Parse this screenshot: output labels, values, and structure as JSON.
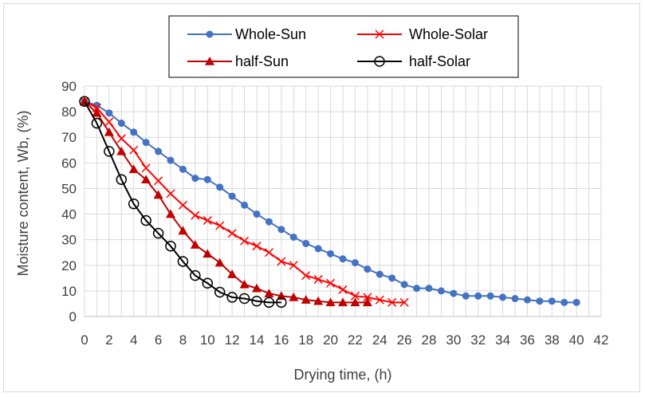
{
  "chart_data": {
    "type": "line",
    "title": "",
    "xlabel": "Drying time, (h)",
    "ylabel": "Moisture content, Wb, (%)",
    "xlim": [
      0,
      42
    ],
    "ylim": [
      0,
      90
    ],
    "xticks": [
      0,
      2,
      4,
      6,
      8,
      10,
      12,
      14,
      16,
      18,
      20,
      22,
      24,
      26,
      28,
      30,
      32,
      34,
      36,
      38,
      40,
      42
    ],
    "yticks": [
      0,
      10,
      20,
      30,
      40,
      50,
      60,
      70,
      80,
      90
    ],
    "grid": true,
    "legend_position": "top",
    "series": [
      {
        "name": "Whole-Sun",
        "color": "#4472c4",
        "marker": "circle-filled",
        "x": [
          0,
          1,
          2,
          3,
          4,
          5,
          6,
          7,
          8,
          9,
          10,
          11,
          12,
          13,
          14,
          15,
          16,
          17,
          18,
          19,
          20,
          21,
          22,
          23,
          24,
          25,
          26,
          27,
          28,
          29,
          30,
          31,
          32,
          33,
          34,
          35,
          36,
          37,
          38,
          39,
          40
        ],
        "y": [
          84,
          82.5,
          79.5,
          75.5,
          72,
          68,
          64.5,
          61,
          57.5,
          54,
          53.5,
          50.5,
          47,
          43.5,
          40,
          37,
          34,
          31,
          28.5,
          26.5,
          24.5,
          22.5,
          21,
          18.5,
          16.5,
          15,
          12.5,
          11,
          11,
          10,
          9,
          8,
          8,
          8,
          7.5,
          7,
          6.5,
          6,
          6,
          5.5,
          5.5
        ]
      },
      {
        "name": "Whole-Solar",
        "color": "#ff0000",
        "marker": "x",
        "x": [
          0,
          1,
          2,
          3,
          4,
          5,
          6,
          7,
          8,
          9,
          10,
          11,
          12,
          13,
          14,
          15,
          16,
          17,
          18,
          19,
          20,
          21,
          22,
          23,
          24,
          25,
          26
        ],
        "y": [
          84,
          81.5,
          76,
          69.5,
          65,
          58,
          53,
          48,
          43.5,
          39.5,
          37.5,
          35.5,
          32.5,
          29.5,
          27.5,
          25,
          21.5,
          20,
          16,
          14.5,
          13,
          10.5,
          8,
          7.5,
          6.5,
          5.5,
          5.5
        ]
      },
      {
        "name": "half-Sun",
        "color": "#c00000",
        "marker": "triangle-filled",
        "x": [
          0,
          1,
          2,
          3,
          4,
          5,
          6,
          7,
          8,
          9,
          10,
          11,
          12,
          13,
          14,
          15,
          16,
          17,
          18,
          19,
          20,
          21,
          22,
          23
        ],
        "y": [
          84,
          79.5,
          72,
          64.5,
          57.5,
          53.5,
          47.5,
          40,
          33.5,
          28,
          24.5,
          21,
          16.5,
          12.5,
          11,
          9,
          8,
          7.5,
          6.5,
          6,
          5.5,
          5.5,
          5.5,
          5.5
        ]
      },
      {
        "name": "half-Solar",
        "color": "#000000",
        "marker": "circle-open",
        "x": [
          0,
          1,
          2,
          3,
          4,
          5,
          6,
          7,
          8,
          9,
          10,
          11,
          12,
          13,
          14,
          15,
          16
        ],
        "y": [
          84,
          75.5,
          64.5,
          53.5,
          44,
          37.5,
          32.5,
          27.5,
          21.5,
          16,
          13,
          9.5,
          7.5,
          7,
          6,
          5.5,
          5.5
        ]
      }
    ]
  }
}
